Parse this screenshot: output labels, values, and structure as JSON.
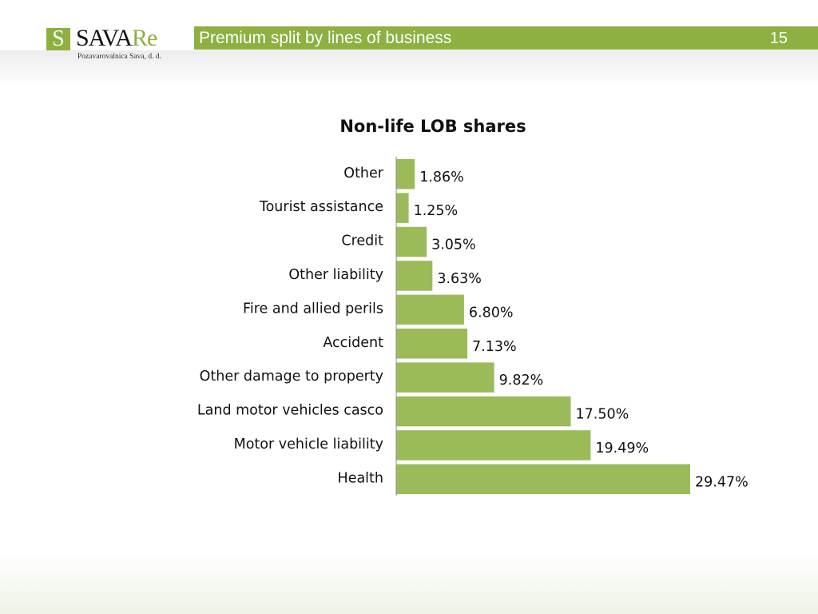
{
  "header": {
    "logo_text": "SAVARe",
    "logo_subtitle": "Pozavarovalnica Sava, d. d.",
    "title": "Premium split by lines of business",
    "page_number": "15"
  },
  "colors": {
    "accent": "#8db040",
    "bar": "#9bbb59"
  },
  "chart_data": {
    "type": "bar",
    "orientation": "horizontal",
    "title": "Non-life LOB shares",
    "categories": [
      "Other",
      "Tourist assistance",
      "Credit",
      "Other liability",
      "Fire and allied perils",
      "Accident",
      "Other damage to property",
      "Land motor vehicles casco",
      "Motor vehicle liability",
      "Health"
    ],
    "values": [
      1.86,
      1.25,
      3.05,
      3.63,
      6.8,
      7.13,
      9.82,
      17.5,
      19.49,
      29.47
    ],
    "labels": [
      "1.86%",
      "1.25%",
      "3.05%",
      "3.63%",
      "6.80%",
      "7.13%",
      "9.82%",
      "17.50%",
      "19.49%",
      "29.47%"
    ],
    "unit": "%",
    "grid": false,
    "legend": "none"
  }
}
